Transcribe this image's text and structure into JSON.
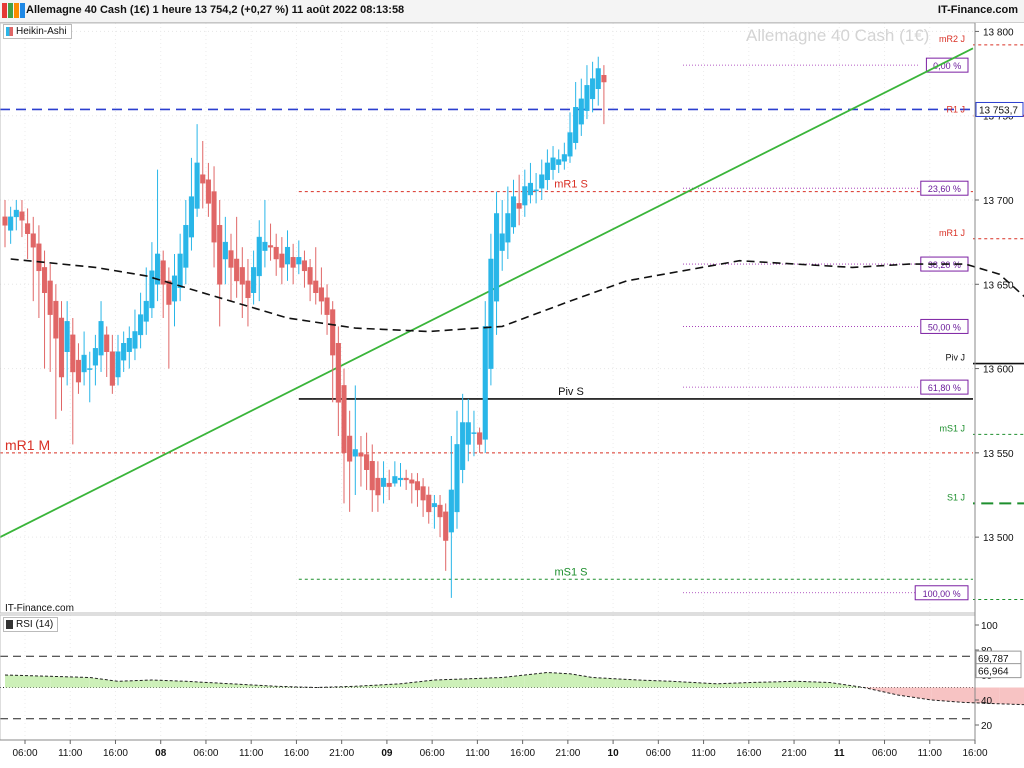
{
  "header": {
    "title": "Allemagne 40 Cash (1€) 1 heure 13 754,2 (+0,27 %) 11 août 2022 08:13:58",
    "brand": "IT-Finance.com"
  },
  "legend": {
    "heikin_ashi": "Heikin-Ashi",
    "rsi": "RSI (14)"
  },
  "watermark": "Allemagne 40 Cash (1€)",
  "footer_brand": "IT-Finance.com",
  "chart_data": [
    {
      "type": "candlestick",
      "style": "Heikin-Ashi",
      "ylim": [
        13455,
        13805
      ],
      "yticks": [
        13500,
        13550,
        13600,
        13650,
        13700,
        13750,
        13800
      ],
      "ytick_labels": [
        "13 500",
        "13 550",
        "13 600",
        "13 650",
        "13 700",
        "13 750",
        "13 800"
      ],
      "last_price_label": "13 753,7",
      "last_price": 13753.7,
      "xtick_labels": [
        "06:00",
        "11:00",
        "16:00",
        "08",
        "06:00",
        "11:00",
        "16:00",
        "21:00",
        "09",
        "06:00",
        "11:00",
        "16:00",
        "21:00",
        "10",
        "06:00",
        "11:00",
        "16:00",
        "21:00",
        "11",
        "06:00",
        "11:00",
        "16:00"
      ],
      "candles": [
        [
          13690,
          13685,
          13700,
          13672
        ],
        [
          13682,
          13690,
          13696,
          13674
        ],
        [
          13690,
          13694,
          13700,
          13682
        ],
        [
          13693,
          13688,
          13700,
          13678
        ],
        [
          13686,
          13680,
          13695,
          13665
        ],
        [
          13680,
          13672,
          13690,
          13640
        ],
        [
          13674,
          13658,
          13685,
          13630
        ],
        [
          13660,
          13645,
          13670,
          13600
        ],
        [
          13652,
          13632,
          13662,
          13598
        ],
        [
          13640,
          13618,
          13650,
          13570
        ],
        [
          13630,
          13595,
          13640,
          13575
        ],
        [
          13610,
          13628,
          13640,
          13590
        ],
        [
          13620,
          13598,
          13630,
          13555
        ],
        [
          13605,
          13592,
          13615,
          13585
        ],
        [
          13598,
          13608,
          13622,
          13590
        ],
        [
          13600,
          13600,
          13610,
          13580
        ],
        [
          13602,
          13612,
          13620,
          13590
        ],
        [
          13608,
          13628,
          13640,
          13598
        ],
        [
          13620,
          13610,
          13625,
          13595
        ],
        [
          13610,
          13590,
          13620,
          13585
        ],
        [
          13595,
          13610,
          13620,
          13590
        ],
        [
          13605,
          13615,
          13622,
          13598
        ],
        [
          13610,
          13618,
          13625,
          13600
        ],
        [
          13612,
          13622,
          13635,
          13605
        ],
        [
          13620,
          13632,
          13645,
          13612
        ],
        [
          13628,
          13640,
          13660,
          13620
        ],
        [
          13636,
          13658,
          13675,
          13630
        ],
        [
          13650,
          13668,
          13718,
          13640
        ],
        [
          13664,
          13650,
          13670,
          13630
        ],
        [
          13652,
          13638,
          13660,
          13600
        ],
        [
          13640,
          13655,
          13668,
          13625
        ],
        [
          13648,
          13668,
          13680,
          13640
        ],
        [
          13660,
          13685,
          13700,
          13650
        ],
        [
          13678,
          13702,
          13725,
          13670
        ],
        [
          13695,
          13722,
          13745,
          13690
        ],
        [
          13715,
          13710,
          13735,
          13695
        ],
        [
          13712,
          13698,
          13722,
          13690
        ],
        [
          13705,
          13675,
          13720,
          13660
        ],
        [
          13685,
          13650,
          13700,
          13625
        ],
        [
          13665,
          13675,
          13690,
          13650
        ],
        [
          13670,
          13660,
          13680,
          13640
        ],
        [
          13665,
          13652,
          13690,
          13642
        ],
        [
          13660,
          13650,
          13672,
          13630
        ],
        [
          13652,
          13642,
          13665,
          13625
        ],
        [
          13645,
          13660,
          13670,
          13638
        ],
        [
          13655,
          13678,
          13688,
          13640
        ],
        [
          13670,
          13675,
          13700,
          13660
        ],
        [
          13673,
          13672,
          13686,
          13664
        ],
        [
          13672,
          13665,
          13680,
          13655
        ],
        [
          13668,
          13660,
          13678,
          13650
        ],
        [
          13662,
          13672,
          13682,
          13652
        ],
        [
          13666,
          13660,
          13674,
          13650
        ],
        [
          13662,
          13666,
          13676,
          13656
        ],
        [
          13664,
          13658,
          13670,
          13648
        ],
        [
          13660,
          13650,
          13665,
          13640
        ],
        [
          13652,
          13645,
          13672,
          13638
        ],
        [
          13648,
          13640,
          13660,
          13632
        ],
        [
          13642,
          13632,
          13650,
          13620
        ],
        [
          13635,
          13608,
          13640,
          13580
        ],
        [
          13615,
          13580,
          13625,
          13560
        ],
        [
          13590,
          13550,
          13600,
          13520
        ],
        [
          13560,
          13545,
          13575,
          13515
        ],
        [
          13548,
          13552,
          13590,
          13525
        ],
        [
          13550,
          13548,
          13560,
          13530
        ],
        [
          13549,
          13540,
          13562,
          13528
        ],
        [
          13545,
          13528,
          13555,
          13515
        ],
        [
          13535,
          13525,
          13545,
          13515
        ],
        [
          13530,
          13535,
          13545,
          13520
        ],
        [
          13532,
          13530,
          13540,
          13522
        ],
        [
          13532,
          13536,
          13545,
          13530
        ],
        [
          13534,
          13535,
          13544,
          13530
        ],
        [
          13535,
          13534,
          13540,
          13528
        ],
        [
          13534,
          13532,
          13538,
          13520
        ],
        [
          13533,
          13528,
          13538,
          13518
        ],
        [
          13530,
          13522,
          13535,
          13512
        ],
        [
          13525,
          13515,
          13530,
          13508
        ],
        [
          13518,
          13520,
          13525,
          13505
        ],
        [
          13519,
          13512,
          13525,
          13500
        ],
        [
          13515,
          13498,
          13520,
          13480
        ],
        [
          13503,
          13528,
          13560,
          13464
        ],
        [
          13515,
          13555,
          13575,
          13505
        ],
        [
          13540,
          13568,
          13585,
          13532
        ],
        [
          13555,
          13568,
          13582,
          13545
        ],
        [
          13562,
          13562,
          13575,
          13548
        ],
        [
          13562,
          13555,
          13565,
          13550
        ],
        [
          13558,
          13625,
          13640,
          13550
        ],
        [
          13600,
          13665,
          13680,
          13590
        ],
        [
          13640,
          13692,
          13705,
          13620
        ],
        [
          13670,
          13680,
          13700,
          13658
        ],
        [
          13675,
          13692,
          13708,
          13665
        ],
        [
          13684,
          13702,
          13712,
          13680
        ],
        [
          13698,
          13695,
          13715,
          13685
        ],
        [
          13697,
          13708,
          13718,
          13690
        ],
        [
          13703,
          13710,
          13722,
          13698
        ],
        [
          13706,
          13706,
          13716,
          13698
        ],
        [
          13707,
          13715,
          13724,
          13700
        ],
        [
          13712,
          13722,
          13730,
          13706
        ],
        [
          13718,
          13725,
          13732,
          13712
        ],
        [
          13721,
          13724,
          13730,
          13716
        ],
        [
          13723,
          13727,
          13734,
          13718
        ],
        [
          13726,
          13740,
          13752,
          13722
        ],
        [
          13734,
          13755,
          13770,
          13730
        ],
        [
          13745,
          13760,
          13772,
          13738
        ],
        [
          13753,
          13768,
          13780,
          13748
        ],
        [
          13760,
          13772,
          13782,
          13752
        ],
        [
          13766,
          13778,
          13785,
          13756
        ],
        [
          13774,
          13770,
          13780,
          13745
        ]
      ],
      "moving_average": [
        [
          1,
          13665
        ],
        [
          16,
          13660
        ],
        [
          25,
          13655
        ],
        [
          38,
          13642
        ],
        [
          50,
          13630
        ],
        [
          62,
          13624
        ],
        [
          75,
          13622
        ],
        [
          88,
          13625
        ],
        [
          100,
          13640
        ],
        [
          110,
          13652
        ],
        [
          120,
          13658
        ],
        [
          130,
          13664
        ],
        [
          140,
          13662
        ],
        [
          150,
          13660
        ],
        [
          160,
          13662
        ],
        [
          170,
          13662
        ],
        [
          176,
          13656
        ],
        [
          184,
          13632
        ],
        [
          200,
          13600
        ],
        [
          212,
          13575
        ],
        [
          226,
          13555
        ],
        [
          238,
          13550
        ],
        [
          246,
          13555
        ],
        [
          256,
          13590
        ],
        [
          264,
          13620
        ],
        [
          274,
          13648
        ],
        [
          282,
          13672
        ],
        [
          290,
          13695
        ]
      ],
      "trendline": {
        "from": [
          0,
          13500
        ],
        "to": [
          298,
          13790
        ]
      },
      "horizontal_levels": [
        {
          "label": "",
          "value": 13753.7,
          "style": "blue-dashed",
          "from_candle": 0,
          "to_candle": 306
        },
        {
          "label": "mR1 S",
          "value": 13705,
          "style": "red-dotted",
          "from_candle": 52,
          "to_candle": 298
        },
        {
          "label": "Piv S",
          "value": 13582,
          "style": "black-solid",
          "from_candle": 52,
          "to_candle": 298
        },
        {
          "label": "mR1 M",
          "value": 13550,
          "style": "red-dotted",
          "from_candle": 0,
          "to_candle": 306
        },
        {
          "label": "mS1 S",
          "value": 13475,
          "style": "green-dotted",
          "from_candle": 52,
          "to_candle": 298
        },
        {
          "label": "mR2 J",
          "value": 13792,
          "style": "red-dotted",
          "from_candle": 245,
          "to_candle": 298
        },
        {
          "label": "R1 J",
          "value": 13750,
          "style": "red-dashed",
          "from_candle": 245,
          "to_candle": 298
        },
        {
          "label": "mR1 J",
          "value": 13677,
          "style": "red-dotted",
          "from_candle": 245,
          "to_candle": 298
        },
        {
          "label": "Piv J",
          "value": 13603,
          "style": "black-solid",
          "from_candle": 245,
          "to_candle": 298
        },
        {
          "label": "mS1 J",
          "value": 13561,
          "style": "green-dotted",
          "from_candle": 245,
          "to_candle": 298
        },
        {
          "label": "S1 J",
          "value": 13520,
          "style": "green-dashed",
          "from_candle": 245,
          "to_candle": 298
        },
        {
          "label": "mS2 J",
          "value": 13463,
          "style": "green-dotted",
          "from_candle": 245,
          "to_candle": 298
        }
      ],
      "fibonacci": [
        {
          "label": "0,00 %",
          "value": 13780
        },
        {
          "label": "23,60 %",
          "value": 13707
        },
        {
          "label": "38,20 %",
          "value": 13662
        },
        {
          "label": "50,00 %",
          "value": 13625
        },
        {
          "label": "61,80 %",
          "value": 13589
        },
        {
          "label": "100,00 %",
          "value": 13467
        }
      ]
    },
    {
      "type": "area",
      "title": "RSI (14)",
      "ylim": [
        8,
        108
      ],
      "yticks": [
        20,
        40,
        60,
        80,
        100
      ],
      "ytick_labels": [
        "20",
        "40",
        "60",
        "80",
        "100"
      ],
      "reference_lines": [
        75,
        50,
        25
      ],
      "value_labels": [
        "69,787",
        "66,964"
      ],
      "values": [
        [
          0,
          60
        ],
        [
          8,
          59
        ],
        [
          15,
          58
        ],
        [
          20,
          55
        ],
        [
          26,
          56
        ],
        [
          32,
          55
        ],
        [
          40,
          53
        ],
        [
          48,
          51
        ],
        [
          55,
          50
        ],
        [
          62,
          51
        ],
        [
          70,
          53
        ],
        [
          76,
          56
        ],
        [
          82,
          57
        ],
        [
          88,
          58
        ],
        [
          92,
          60
        ],
        [
          96,
          62
        ],
        [
          100,
          61
        ],
        [
          104,
          58
        ],
        [
          108,
          57
        ],
        [
          112,
          56
        ],
        [
          118,
          55
        ],
        [
          126,
          53
        ],
        [
          132,
          54
        ],
        [
          140,
          55
        ],
        [
          146,
          54
        ],
        [
          152,
          50
        ],
        [
          158,
          44
        ],
        [
          164,
          40
        ],
        [
          170,
          38
        ],
        [
          176,
          37
        ],
        [
          182,
          36
        ],
        [
          188,
          35
        ],
        [
          194,
          34
        ],
        [
          200,
          33
        ],
        [
          206,
          32
        ],
        [
          212,
          31
        ],
        [
          218,
          31
        ],
        [
          222,
          30
        ],
        [
          226,
          36
        ],
        [
          230,
          45
        ],
        [
          236,
          58
        ],
        [
          240,
          64
        ],
        [
          246,
          67
        ],
        [
          252,
          68
        ],
        [
          258,
          69
        ],
        [
          264,
          70
        ],
        [
          270,
          71
        ],
        [
          276,
          70
        ],
        [
          280,
          67
        ]
      ]
    }
  ]
}
